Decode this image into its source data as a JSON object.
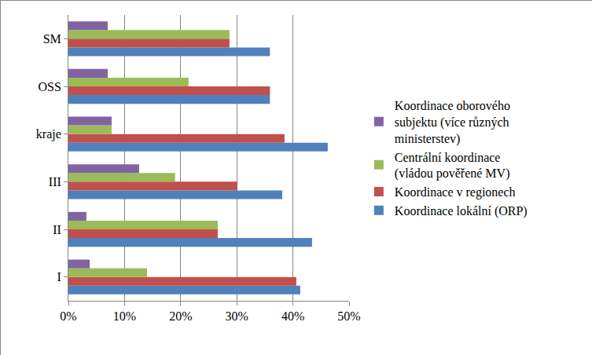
{
  "chart_data": {
    "type": "bar",
    "orientation": "horizontal",
    "categories": [
      "I",
      "II",
      "III",
      "kraje",
      "OSS",
      "SM"
    ],
    "series": [
      {
        "name": "Koordinace lokální (ORP)",
        "color": "#4F81BD",
        "values": [
          41.3,
          43.4,
          38.1,
          46.2,
          35.9,
          35.9
        ]
      },
      {
        "name": "Koordinace v regionech",
        "color": "#C0504D",
        "values": [
          40.6,
          26.6,
          30.1,
          38.5,
          35.9,
          28.7
        ]
      },
      {
        "name": "Centrální koordinace (vládou pověřené MV)",
        "color": "#9BBB59",
        "values": [
          14.0,
          26.6,
          19.0,
          7.7,
          21.4,
          28.7
        ]
      },
      {
        "name": "Koordinace oborového subjektu (více různých ministerstev)",
        "color": "#8064A2",
        "values": [
          3.8,
          3.2,
          12.6,
          7.7,
          7.0,
          7.0
        ]
      }
    ],
    "xlim": [
      0,
      50
    ],
    "xticks": [
      {
        "value": 0,
        "label": "0%"
      },
      {
        "value": 10,
        "label": "10%"
      },
      {
        "value": 20,
        "label": "20%"
      },
      {
        "value": 30,
        "label": "30%"
      },
      {
        "value": 40,
        "label": "40%"
      },
      {
        "value": 50,
        "label": "50%"
      }
    ],
    "grid": true,
    "legend": "right"
  }
}
